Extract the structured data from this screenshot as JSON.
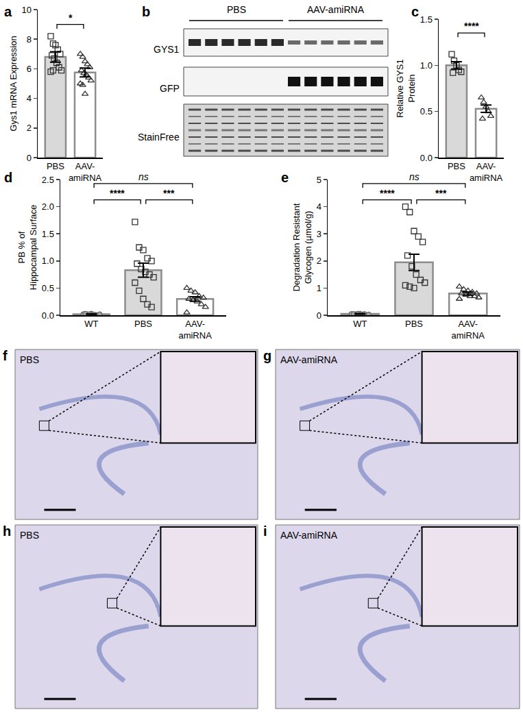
{
  "chart_data": [
    {
      "label": "a",
      "type": "bar",
      "y_label": "Gys1 mRNA Expression",
      "categories": [
        "PBS",
        "AAV-\namiRNA"
      ],
      "values": [
        6.8,
        5.75
      ],
      "errors": [
        0.35,
        0.3
      ],
      "points": [
        [
          8.2,
          7.7,
          7.6,
          7.3,
          7.0,
          6.9,
          6.7,
          6.4,
          6.1,
          5.9,
          5.8,
          5.9
        ],
        [
          7.0,
          6.8,
          6.5,
          6.3,
          6.1,
          5.9,
          5.7,
          5.6,
          5.4,
          5.2,
          5.0,
          4.9,
          4.3
        ]
      ],
      "colors": [
        "#d9d9d9",
        "#ffffff"
      ],
      "markers": [
        "square",
        "triangle"
      ],
      "ylim": [
        0,
        10
      ],
      "yticks": [
        0,
        2,
        4,
        6,
        8,
        10
      ],
      "comparisons": [
        {
          "from": "PBS",
          "to": "AAV-\namiRNA",
          "label": "*"
        }
      ]
    },
    {
      "label": "c",
      "type": "bar",
      "y_label": "Relative GYS1\nProtein",
      "categories": [
        "PBS",
        "AAV-\namiRNA"
      ],
      "values": [
        1.0,
        0.53
      ],
      "errors": [
        0.04,
        0.04
      ],
      "points": [
        [
          1.12,
          1.05,
          1.0,
          0.95,
          0.93,
          0.92
        ],
        [
          0.65,
          0.6,
          0.55,
          0.5,
          0.45,
          0.42
        ]
      ],
      "colors": [
        "#d9d9d9",
        "#ffffff"
      ],
      "markers": [
        "square",
        "triangle"
      ],
      "ylim": [
        0,
        1.5
      ],
      "yticks": [
        {
          "value": 0,
          "label": "0.0"
        },
        0.5,
        {
          "value": 1,
          "label": "1.0"
        },
        1.5
      ],
      "comparisons": [
        {
          "from": "PBS",
          "to": "AAV-\namiRNA",
          "label": "****"
        }
      ]
    },
    {
      "label": "d",
      "type": "bar",
      "y_label": "PB % of\nHippocampal Surface",
      "categories": [
        "WT",
        "PBS",
        "AAV-\namiRNA"
      ],
      "values": [
        0.02,
        0.83,
        0.3
      ],
      "errors": [
        0.005,
        0.13,
        0.04
      ],
      "points": [
        [
          0.02,
          0.02,
          0.03,
          0.01,
          0.02,
          0.03,
          0.02,
          0.01
        ],
        [
          1.72,
          1.25,
          1.2,
          1.05,
          1.0,
          0.95,
          0.85,
          0.8,
          0.75,
          0.7,
          0.6,
          0.45,
          0.3,
          0.2,
          0.15
        ],
        [
          0.5,
          0.45,
          0.42,
          0.35,
          0.32,
          0.3,
          0.28,
          0.25,
          0.2,
          0.15,
          0.05
        ]
      ],
      "colors": [
        "#ffffff",
        "#d9d9d9",
        "#ffffff"
      ],
      "markers": [
        "circle",
        "square",
        "triangle"
      ],
      "ylim": [
        0,
        2.5
      ],
      "yticks": [
        {
          "value": 0,
          "label": "0.0"
        },
        0.5,
        {
          "value": 1,
          "label": "1.0"
        },
        1.5,
        {
          "value": 2,
          "label": "2.0"
        },
        2.5
      ],
      "comparisons": [
        {
          "from": "WT",
          "to": "PBS",
          "label": "****"
        },
        {
          "from": "PBS",
          "to": "AAV-\namiRNA",
          "label": "***"
        },
        {
          "from": "WT",
          "to": "AAV-\namiRNA",
          "label": "ns"
        }
      ]
    },
    {
      "label": "e",
      "type": "bar",
      "y_label": "Degradation Resistant\nGlycogen (µmol/g)",
      "categories": [
        "WT",
        "PBS",
        "AAV-\namiRNA"
      ],
      "values": [
        0.05,
        1.95,
        0.8
      ],
      "errors": [
        0.01,
        0.3,
        0.06
      ],
      "points": [
        [
          0.05,
          0.04,
          0.06,
          0.05,
          0.03,
          0.05,
          0.06
        ],
        [
          4.0,
          3.8,
          3.1,
          2.9,
          2.7,
          2.2,
          1.8,
          1.5,
          1.3,
          1.2,
          1.1,
          1.05,
          1.0
        ],
        [
          1.05,
          0.95,
          0.9,
          0.85,
          0.8,
          0.8,
          0.75,
          0.7,
          0.7,
          0.65,
          0.6
        ]
      ],
      "colors": [
        "#ffffff",
        "#d9d9d9",
        "#ffffff"
      ],
      "markers": [
        "circle",
        "square",
        "triangle"
      ],
      "ylim": [
        0,
        5
      ],
      "yticks": [
        0,
        1,
        2,
        3,
        4,
        5
      ],
      "comparisons": [
        {
          "from": "WT",
          "to": "PBS",
          "label": "****"
        },
        {
          "from": "PBS",
          "to": "AAV-\namiRNA",
          "label": "***"
        },
        {
          "from": "WT",
          "to": "AAV-\namiRNA",
          "label": "ns"
        }
      ]
    }
  ],
  "blot": {
    "label": "b",
    "groups": [
      "PBS",
      "AAV-amiRNA"
    ],
    "rows": [
      "GYS1",
      "GFP",
      "StainFree"
    ]
  },
  "histology": [
    {
      "label": "f",
      "title": "PBS"
    },
    {
      "label": "g",
      "title": "AAV-amiRNA"
    },
    {
      "label": "h",
      "title": "PBS"
    },
    {
      "label": "i",
      "title": "AAV-amiRNA"
    }
  ]
}
